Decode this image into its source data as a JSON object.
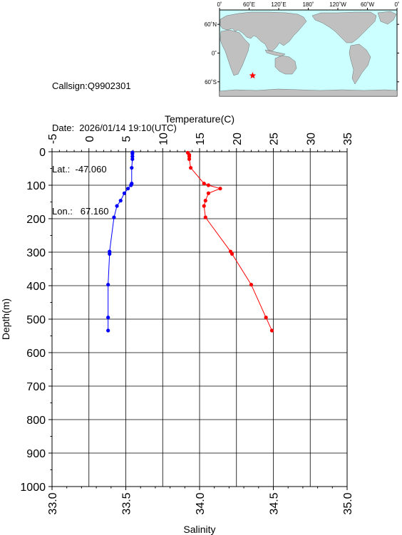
{
  "info": {
    "callsign": "Callsign:Q9902301",
    "date": "Date:  2026/01/14 19:10(UTC)",
    "lat": "Lat.:  -47.060",
    "lon": "Lon.:   67.160"
  },
  "map": {
    "lon_ticks": [
      "0˚",
      "60˚E",
      "120˚E",
      "180˚",
      "120˚W",
      "60˚W",
      "0˚"
    ],
    "lat_ticks": [
      "60˚N",
      "0˚",
      "60˚S"
    ],
    "station": {
      "lon": 67.16,
      "lat": -47.06
    },
    "colors": {
      "ocean": "#ccffff",
      "land": "#c0c0c0",
      "marker": "#ff0000"
    }
  },
  "chart_data": {
    "type": "line",
    "top_axis_label": "Temperature(C)",
    "bottom_axis_label": "Salinity",
    "ylabel": "Depth(m)",
    "temperature_ticks": [
      "-5",
      "0",
      "5",
      "10",
      "15",
      "20",
      "25",
      "30",
      "35"
    ],
    "salinity_ticks": [
      "33.0",
      "33.5",
      "34.0",
      "34.5",
      "35.0"
    ],
    "depth_ticks": [
      "0",
      "100",
      "200",
      "300",
      "400",
      "500",
      "600",
      "700",
      "800",
      "900",
      "1000"
    ],
    "xlim_temperature": [
      -5,
      35
    ],
    "xlim_salinity": [
      33.0,
      35.0
    ],
    "ylim": [
      0,
      1000
    ],
    "grid": true,
    "series": [
      {
        "color": "#0000ff",
        "axis": "temperature",
        "points": [
          [
            5.9,
            2
          ],
          [
            5.9,
            6
          ],
          [
            5.9,
            14
          ],
          [
            5.9,
            22
          ],
          [
            5.8,
            48
          ],
          [
            5.8,
            95
          ],
          [
            5.7,
            100
          ],
          [
            5.3,
            110
          ],
          [
            4.8,
            124
          ],
          [
            4.3,
            146
          ],
          [
            3.8,
            162
          ],
          [
            3.4,
            196
          ],
          [
            2.8,
            298
          ],
          [
            2.8,
            305
          ],
          [
            2.6,
            397
          ],
          [
            2.6,
            495
          ],
          [
            2.6,
            534
          ]
        ]
      },
      {
        "color": "#ff0000",
        "axis": "salinity",
        "points": [
          [
            33.92,
            3
          ],
          [
            33.93,
            9
          ],
          [
            33.93,
            14
          ],
          [
            33.93,
            22
          ],
          [
            33.94,
            48
          ],
          [
            34.03,
            95
          ],
          [
            34.06,
            100
          ],
          [
            34.14,
            110
          ],
          [
            34.06,
            124
          ],
          [
            34.04,
            146
          ],
          [
            34.03,
            162
          ],
          [
            34.04,
            196
          ],
          [
            34.21,
            298
          ],
          [
            34.22,
            305
          ],
          [
            34.35,
            397
          ],
          [
            34.45,
            495
          ],
          [
            34.49,
            534
          ]
        ]
      }
    ]
  }
}
